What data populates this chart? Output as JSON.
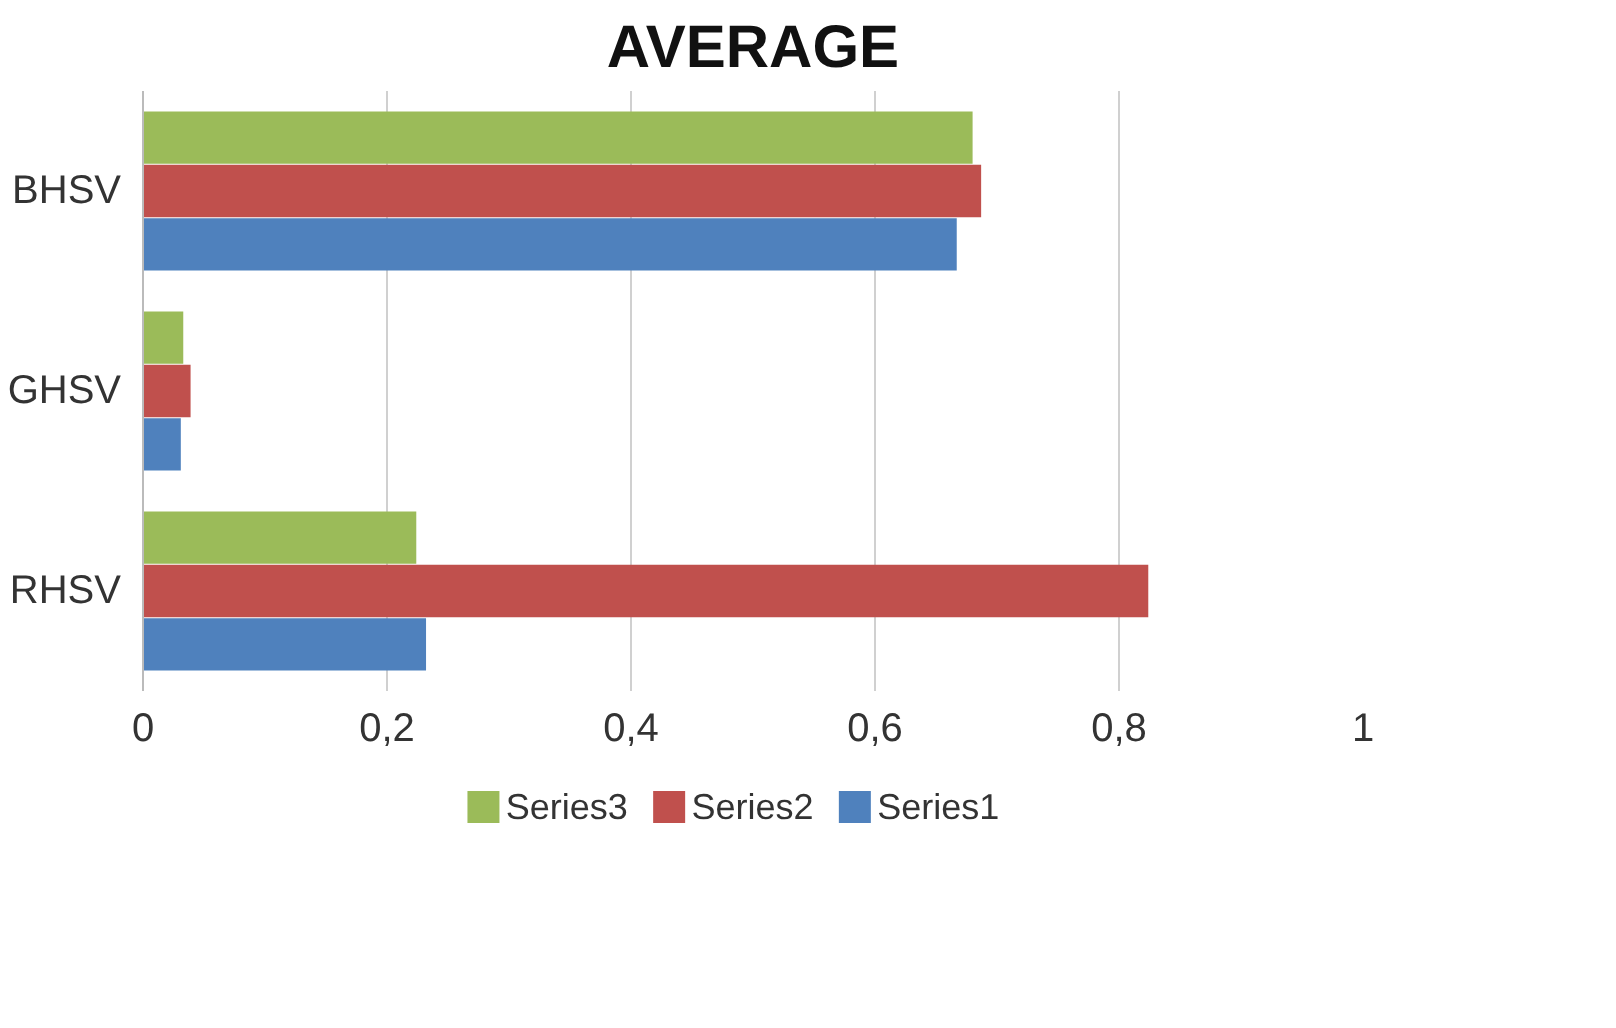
{
  "chart_data": {
    "type": "bar",
    "orientation": "horizontal",
    "title": "AVERAGE",
    "categories": [
      "BHSV",
      "GHSV",
      "RHSV"
    ],
    "series": [
      {
        "name": "Series3",
        "color": "#9bbb59",
        "values": [
          0.68,
          0.033,
          0.224
        ]
      },
      {
        "name": "Series2",
        "color": "#c0504d",
        "values": [
          0.687,
          0.039,
          0.824
        ]
      },
      {
        "name": "Series1",
        "color": "#4f81bd",
        "values": [
          0.667,
          0.031,
          0.232
        ]
      }
    ],
    "xlim": [
      0,
      1
    ],
    "xticks": [
      0,
      {
        "value": 0.2,
        "label": "0,2"
      },
      {
        "value": 0.4,
        "label": "0,4"
      },
      {
        "value": 0.6,
        "label": "0,6"
      },
      {
        "value": 0.8,
        "label": "0,8"
      },
      1
    ],
    "grid": "x",
    "legend": "bottom"
  }
}
